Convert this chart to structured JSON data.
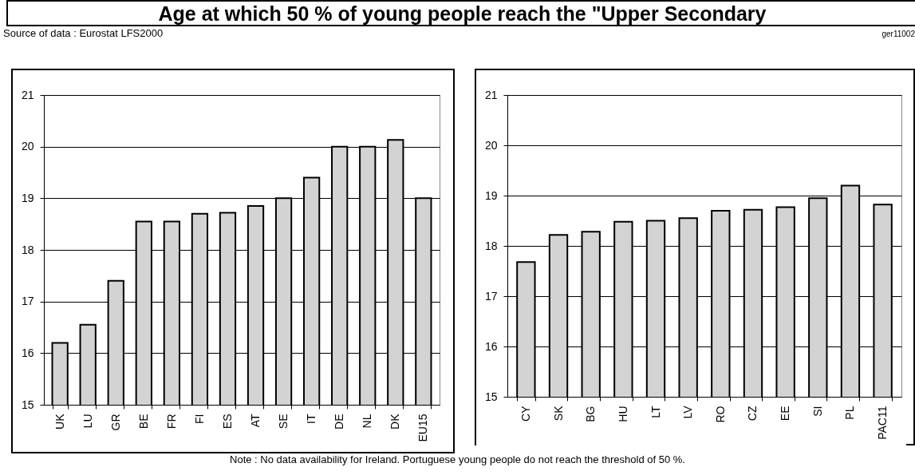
{
  "chart_data": [
    {
      "type": "bar",
      "title": "Age at which 50 % of young people reach the \"Upper Secondary",
      "annotations": [
        "Source of data : Eurostat LFS2000",
        "ger11002",
        "Note : No data availability for Ireland. Portuguese young people do not reach the threshold of 50 %."
      ],
      "categories": [
        "UK",
        "LU",
        "GR",
        "BE",
        "FR",
        "FI",
        "ES",
        "AT",
        "SE",
        "IT",
        "DE",
        "NL",
        "DK",
        "EU15"
      ],
      "values": [
        16.2,
        16.55,
        17.4,
        18.55,
        18.55,
        18.7,
        18.72,
        18.85,
        19.0,
        19.4,
        20.0,
        20.0,
        20.13,
        19.0
      ],
      "color": "#d3d3d3",
      "ylim": [
        15,
        21
      ],
      "yticks": [
        15,
        16,
        17,
        18,
        19,
        20,
        21
      ],
      "grid": "y"
    },
    {
      "type": "bar",
      "categories": [
        "CY",
        "SK",
        "BG",
        "HU",
        "LT",
        "LV",
        "RO",
        "CZ",
        "EE",
        "SI",
        "PL",
        "PAC11"
      ],
      "values": [
        17.68,
        18.22,
        18.28,
        18.48,
        18.5,
        18.55,
        18.7,
        18.72,
        18.77,
        18.95,
        19.2,
        18.82
      ],
      "color": "#d3d3d3",
      "ylim": [
        15,
        21
      ],
      "yticks": [
        15,
        16,
        17,
        18,
        19,
        20,
        21
      ],
      "grid": "y"
    }
  ]
}
